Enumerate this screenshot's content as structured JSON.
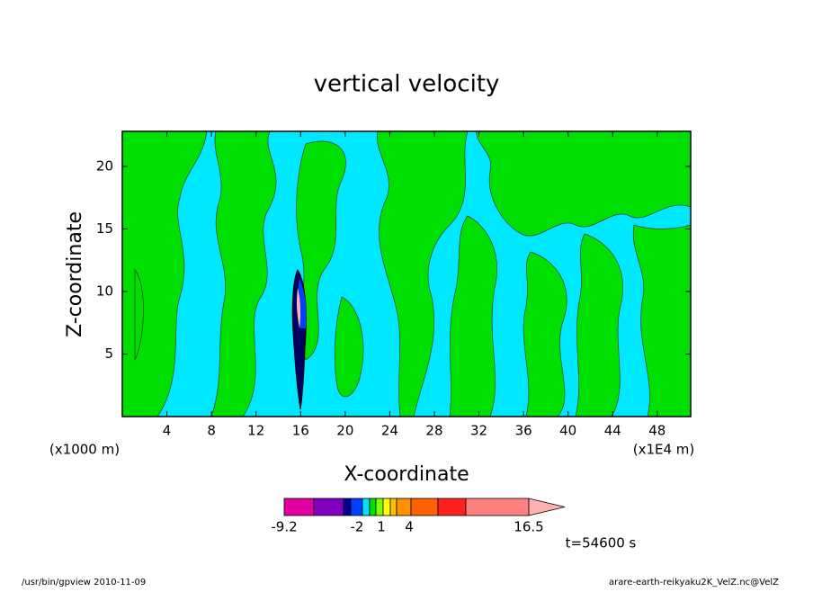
{
  "chart_data": {
    "type": "contour",
    "title": "vertical velocity",
    "xlabel": "X-coordinate",
    "ylabel": "Z-coordinate",
    "xunit": "(x1000 m)",
    "xunit2": "(x1E4 m)",
    "xlim": [
      0,
      51
    ],
    "xticks": [
      4,
      8,
      12,
      16,
      20,
      24,
      28,
      32,
      36,
      40,
      44,
      48
    ],
    "ylim": [
      0,
      22.8
    ],
    "yticks": [
      5,
      10,
      15,
      20
    ],
    "colorbar": {
      "colors": [
        "#e000a0",
        "#8000c0",
        "#000090",
        "#0040ff",
        "#00e0ff",
        "#00e000",
        "#80ff00",
        "#ffff00",
        "#ffc000",
        "#ff9000",
        "#ff6000",
        "#ff2020",
        "#ff8080",
        "#ffb0b0"
      ],
      "labels": [
        "-9.2",
        "-2",
        "1",
        "4",
        "16.5"
      ]
    },
    "time_label": "t=54600 s",
    "footer_left": "/usr/bin/gpview  2010-11-09",
    "footer_right": "arare-earth-reikyaku2K_VelZ.nc@VelZ"
  }
}
